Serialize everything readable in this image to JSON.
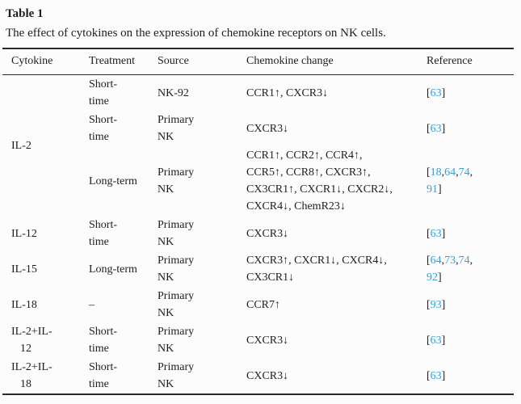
{
  "table_label": "Table 1",
  "table_caption": "The effect of cytokines on the expression of chemokine receptors on NK cells.",
  "colors": {
    "link_blue": "#379fd7",
    "text": "#1e1e1e",
    "rule": "#2a2a2a",
    "background": "#fcfcfc"
  },
  "columns": [
    "Cytokine",
    "Treatment",
    "Source",
    "Chemokine change",
    "Reference"
  ],
  "rows": [
    {
      "cytokine": "IL-2",
      "cytokine_rowspan": 3,
      "treatment": "Short-\ntime",
      "source": "NK-92",
      "change": "CCR1↑, CXCR3↓",
      "reference": "[63]"
    },
    {
      "treatment": "Short-\ntime",
      "source": "Primary\nNK",
      "change": "CXCR3↓",
      "reference": "[63]"
    },
    {
      "treatment": "Long-term",
      "source": "Primary\nNK",
      "change": "CCR1↑, CCR2↑, CCR4↑,\nCCR5↑, CCR8↑, CXCR3↑,\nCX3CR1↑, CXCR1↓, CXCR2↓,\nCXCR4↓, ChemR23↓",
      "reference": "[18,64,74,\n91]"
    },
    {
      "cytokine": "IL-12",
      "treatment": "Short-\ntime",
      "source": "Primary\nNK",
      "change": "CXCR3↓",
      "reference": "[63]"
    },
    {
      "cytokine": "IL-15",
      "treatment": "Long-term",
      "source": "Primary\nNK",
      "change": "CXCR3↑, CXCR1↓, CXCR4↓,\nCX3CR1↓",
      "reference": "[64,73,74,\n92]"
    },
    {
      "cytokine": "IL-18",
      "treatment": "–",
      "source": "Primary\nNK",
      "change": "CCR7↑",
      "reference": "[93]"
    },
    {
      "cytokine": "IL-2+IL-\n12",
      "treatment": "Short-\ntime",
      "source": "Primary\nNK",
      "change": "CXCR3↓",
      "reference": "[63]"
    },
    {
      "cytokine": "IL-2+IL-\n18",
      "treatment": "Short-\ntime",
      "source": "Primary\nNK",
      "change": "CXCR3↓",
      "reference": "[63]"
    }
  ]
}
